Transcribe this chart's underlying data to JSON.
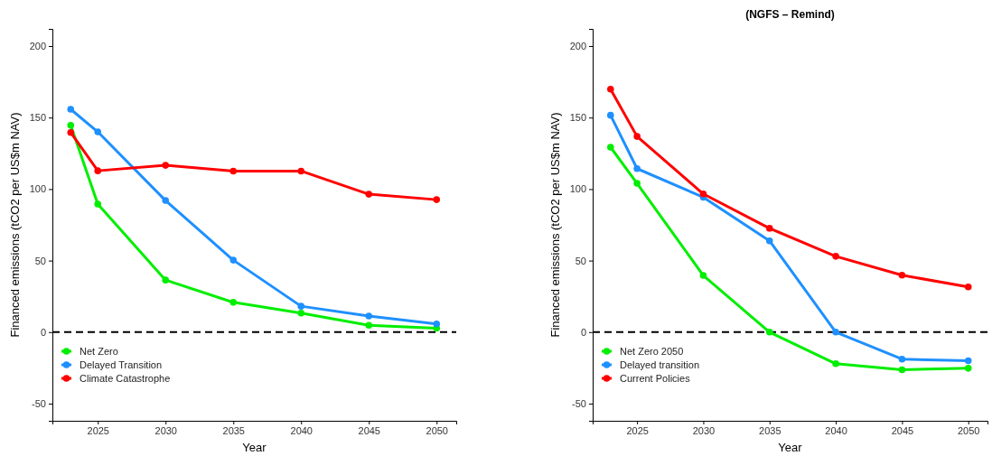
{
  "chart_data": [
    {
      "type": "line",
      "xlabel": "Year",
      "ylabel": "Financed emissions (tCO2 per US$m NAV)",
      "x": [
        2023,
        2025,
        2030,
        2035,
        2040,
        2045,
        2050
      ],
      "series": [
        {
          "name": "Net Zero",
          "color": "#00ee00",
          "values": [
            144.6,
            89.5,
            36.4,
            20.8,
            13.3,
            4.8,
            2.7
          ]
        },
        {
          "name": "Delayed Transition",
          "color": "#1e90ff",
          "values": [
            155.8,
            140,
            92,
            50.3,
            18.1,
            11.2,
            5.7
          ]
        },
        {
          "name": "Climate Catastrophe",
          "color": "#ff0000",
          "values": [
            139.6,
            112.8,
            116.6,
            112.6,
            112.6,
            96.4,
            92.6
          ]
        }
      ],
      "xlim": [
        2021.65,
        2051.45
      ],
      "xticks": [
        2025,
        2030,
        2035,
        2040,
        2045,
        2050
      ],
      "ylim": [
        -62,
        212
      ],
      "yticks": [
        -50,
        0,
        50,
        100,
        150,
        200
      ],
      "ref_lines": [
        {
          "axis": "y",
          "value": 0,
          "color": "#000000",
          "line_style": "dashed"
        }
      ],
      "grid": false,
      "legend": "bottom left",
      "marker": "circle",
      "line_style": "solid"
    },
    {
      "type": "line",
      "title": "(NGFS – Remind)",
      "xlabel": "Year",
      "ylabel": "Financed emissions (tCO2 per US$m NAV)",
      "x": [
        2023,
        2025,
        2030,
        2035,
        2040,
        2045,
        2050
      ],
      "series": [
        {
          "name": "Net Zero 2050",
          "color": "#00ee00",
          "values": [
            129.3,
            104,
            39.6,
            0,
            -22.1,
            -26.3,
            -25.3
          ]
        },
        {
          "name": "Delayed transition",
          "color": "#1e90ff",
          "values": [
            151.6,
            114.3,
            94.3,
            63.8,
            0,
            -18.9,
            -20
          ]
        },
        {
          "name": "Current Policies",
          "color": "#ff0000",
          "values": [
            169.9,
            136.8,
            96.6,
            72.6,
            53,
            39.8,
            31.6
          ]
        }
      ],
      "xlim": [
        2021.65,
        2051.45
      ],
      "xticks": [
        2025,
        2030,
        2035,
        2040,
        2045,
        2050
      ],
      "ylim": [
        -62,
        212
      ],
      "yticks": [
        -50,
        0,
        50,
        100,
        150,
        200
      ],
      "ref_lines": [
        {
          "axis": "y",
          "value": 0,
          "color": "#000000",
          "line_style": "dashed"
        }
      ],
      "grid": false,
      "legend": "bottom left",
      "marker": "circle",
      "line_style": "solid"
    }
  ]
}
